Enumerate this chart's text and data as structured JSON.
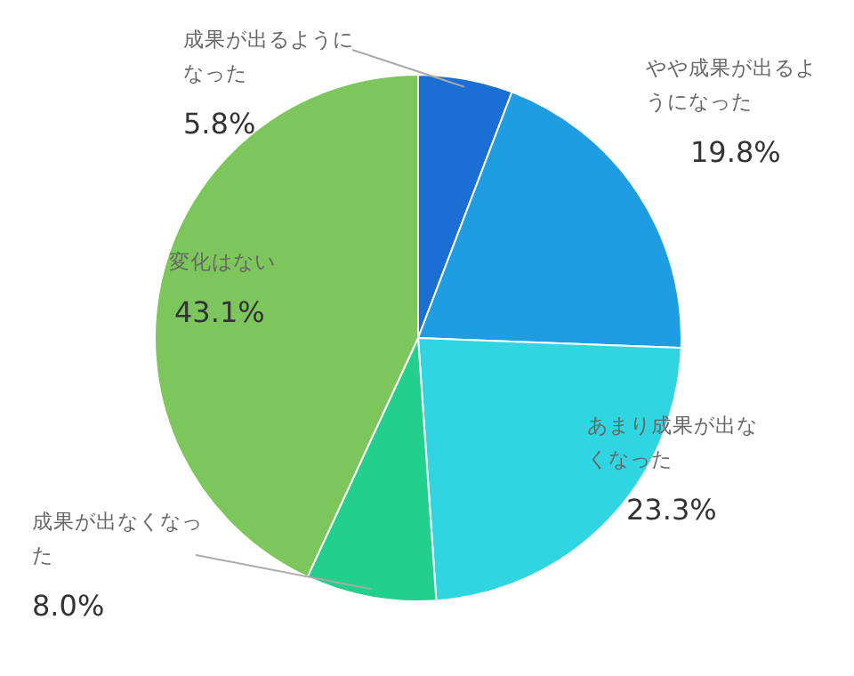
{
  "chart_data": {
    "type": "pie",
    "categories": [
      "成果が出るようになった",
      "やや成果が出るようになった",
      "あまり成果が出なくなった",
      "成果が出なくなった",
      "変化はない"
    ],
    "values": [
      5.8,
      19.8,
      23.3,
      8.0,
      43.1
    ],
    "value_labels": [
      "5.8%",
      "19.8%",
      "23.3%",
      "8.0%",
      "43.1%"
    ],
    "colors": [
      "#1b6fd4",
      "#1e9de3",
      "#2fd6e2",
      "#22cf8c",
      "#7cc65c"
    ]
  }
}
